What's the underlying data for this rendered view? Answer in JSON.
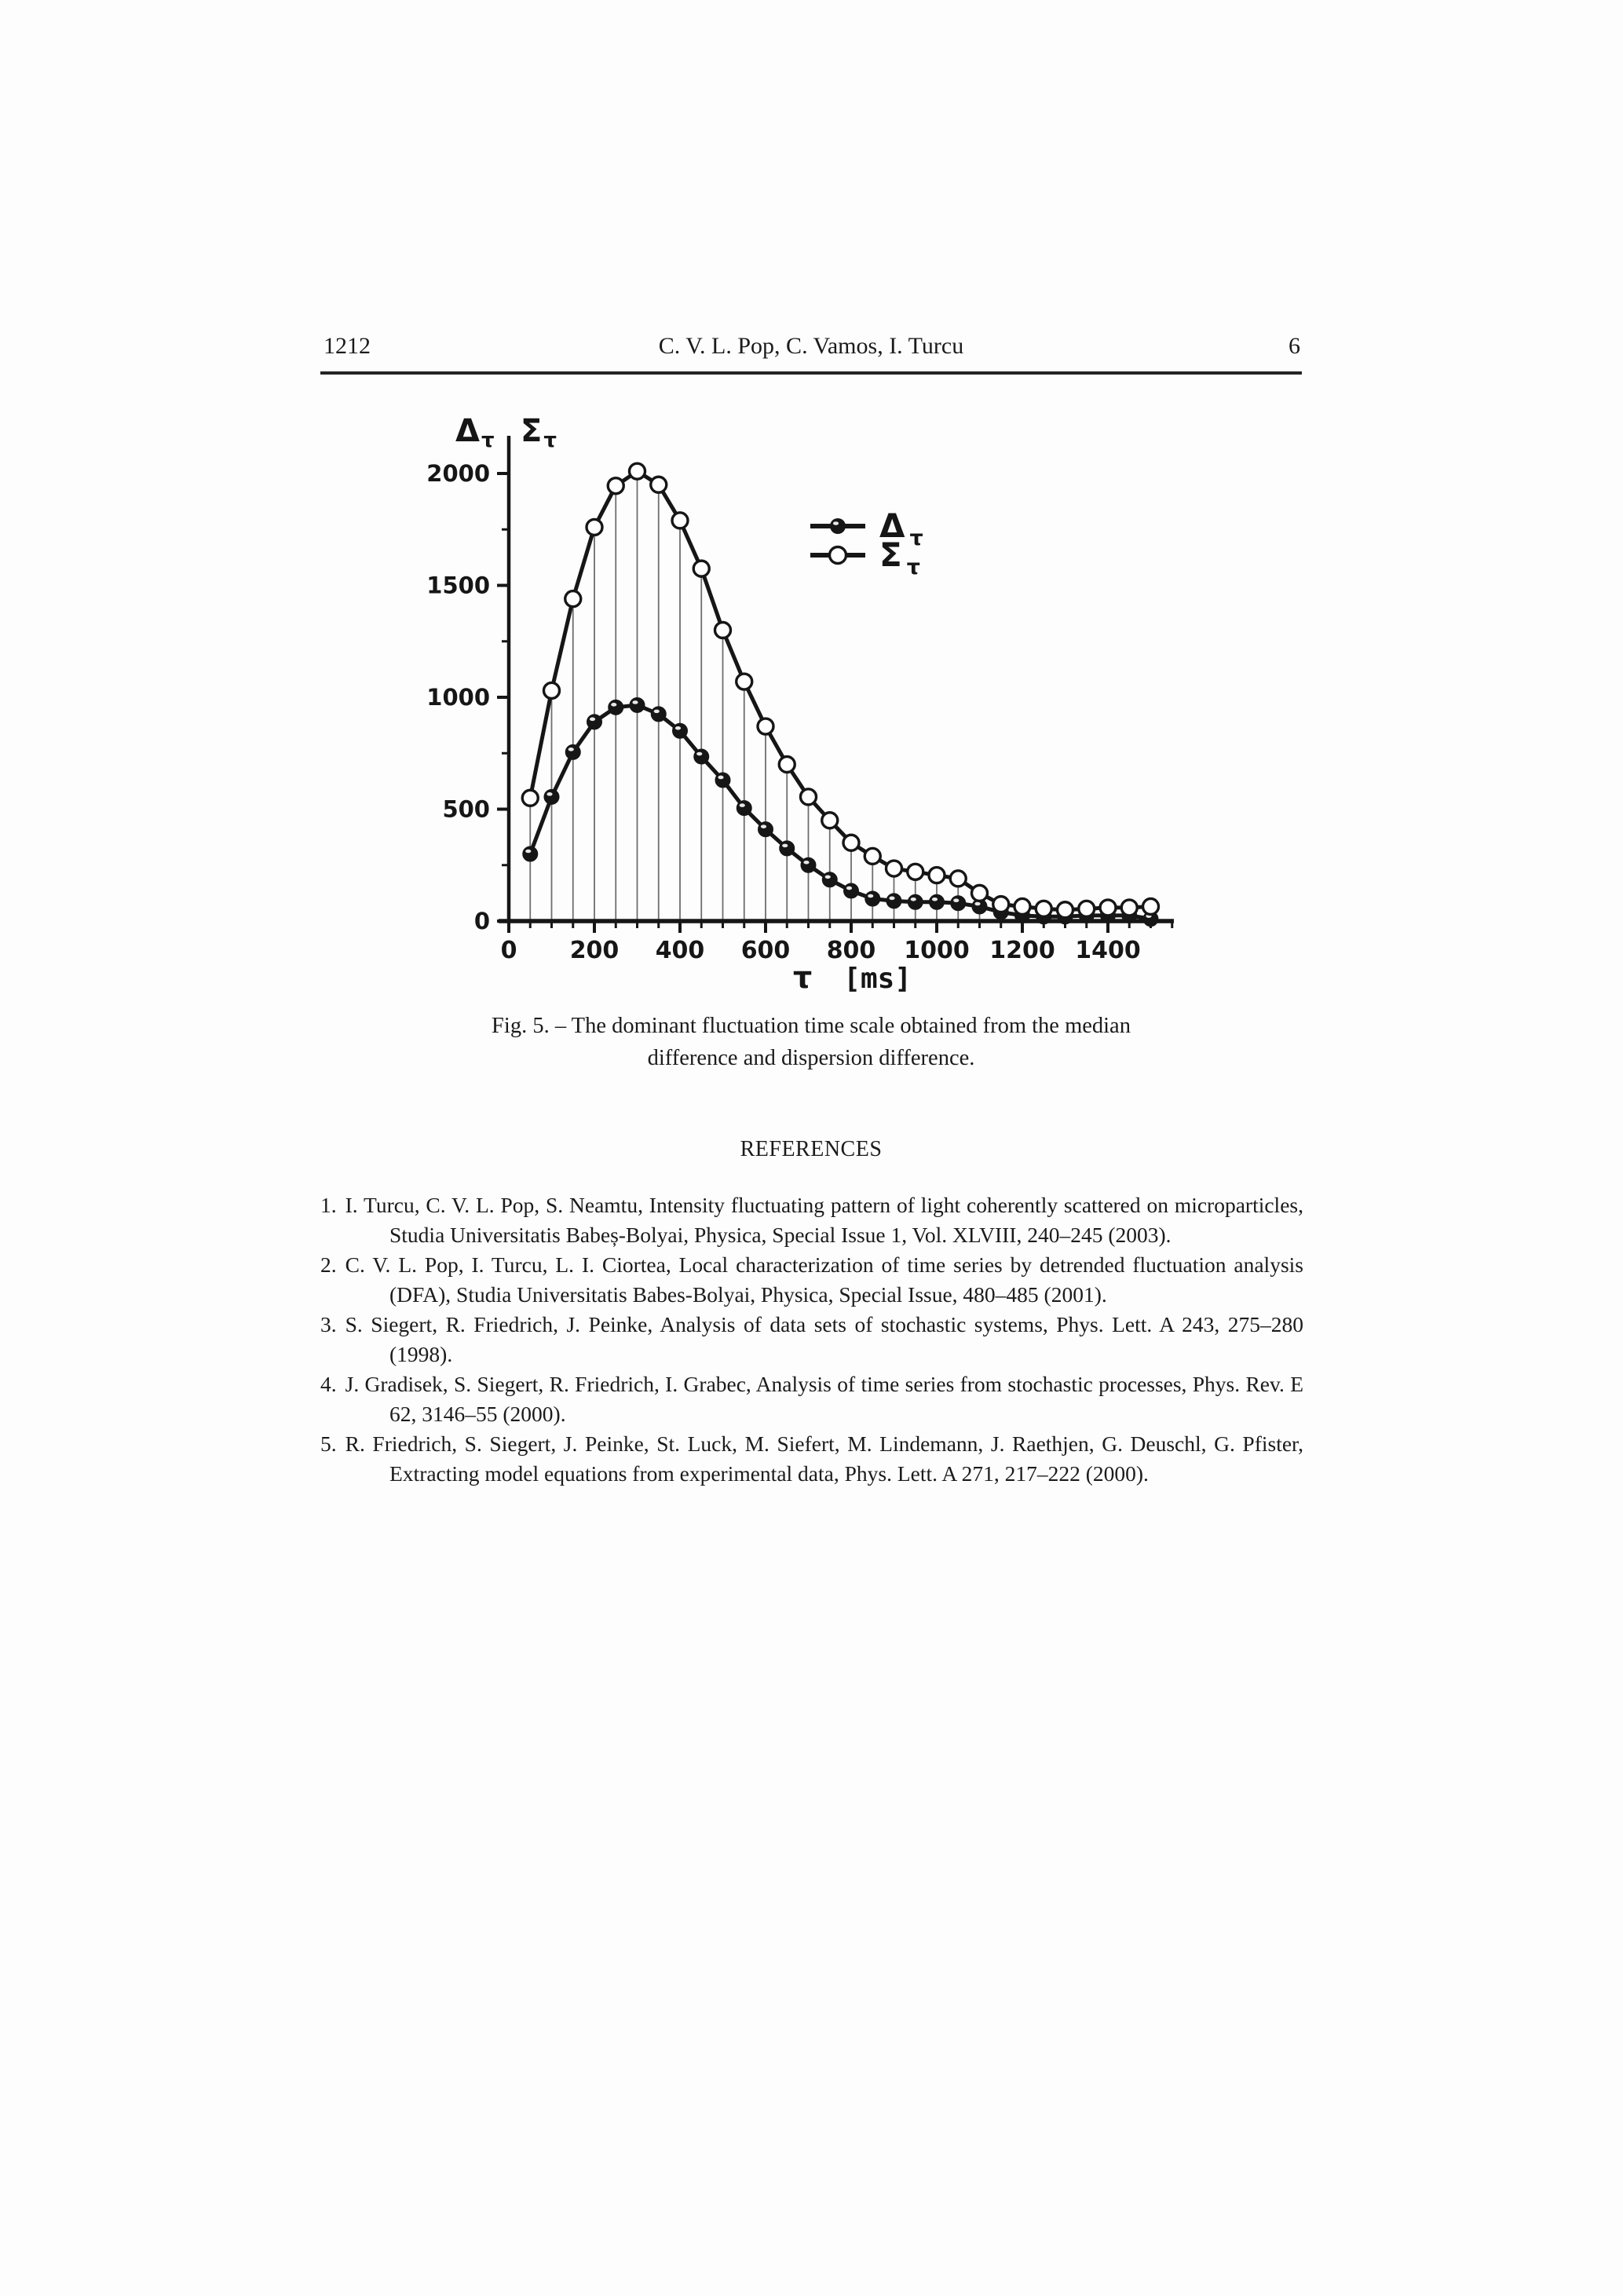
{
  "header": {
    "page_number_left": "1212",
    "running_title": "C. V. L. Pop, C. Vamos, I. Turcu",
    "page_number_right": "6"
  },
  "figure": {
    "caption_line1": "Fig. 5. – The dominant fluctuation time scale obtained from the median",
    "caption_line2": "difference and dispersion difference."
  },
  "chart_data": {
    "type": "line",
    "title": "",
    "xlabel": {
      "symbol": "τ",
      "unit": "[ms]"
    },
    "ylabel_left": {
      "main": "Δ",
      "sub": "τ"
    },
    "ylabel_right": {
      "main": "Σ",
      "sub": "τ"
    },
    "xlim": [
      0,
      1550
    ],
    "ylim": [
      0,
      2150
    ],
    "grid": "drop-lines-every-50ms",
    "legend_position": "upper-right-inside",
    "x_ticks_labeled": [
      0,
      200,
      400,
      600,
      800,
      1000,
      1200,
      1400
    ],
    "x_minor_tick_step": 50,
    "y_ticks_labeled": [
      0,
      500,
      1000,
      1500,
      2000
    ],
    "y_minor_ticks": [
      250,
      750,
      1250,
      1750
    ],
    "x": [
      50,
      100,
      150,
      200,
      250,
      300,
      350,
      400,
      450,
      500,
      550,
      600,
      650,
      700,
      750,
      800,
      850,
      900,
      950,
      1000,
      1050,
      1100,
      1150,
      1200,
      1250,
      1300,
      1350,
      1400,
      1450,
      1500
    ],
    "series": [
      {
        "name": "Δτ",
        "marker": "filled-circle",
        "values": [
          300,
          555,
          755,
          890,
          955,
          965,
          925,
          850,
          735,
          630,
          505,
          410,
          325,
          250,
          185,
          135,
          100,
          90,
          85,
          85,
          80,
          65,
          40,
          25,
          20,
          20,
          25,
          25,
          25,
          10
        ]
      },
      {
        "name": "Στ",
        "marker": "open-circle",
        "values": [
          550,
          1030,
          1440,
          1760,
          1945,
          2010,
          1950,
          1790,
          1575,
          1300,
          1070,
          870,
          700,
          555,
          450,
          350,
          290,
          235,
          220,
          205,
          190,
          125,
          75,
          65,
          55,
          50,
          55,
          60,
          60,
          65
        ]
      }
    ],
    "legend": {
      "entries": [
        {
          "symbol": "filled-circle",
          "label": "Δ",
          "sub": "τ"
        },
        {
          "symbol": "open-circle",
          "label": "Σ",
          "sub": "τ"
        }
      ]
    }
  },
  "references": {
    "heading": "REFERENCES",
    "items": [
      {
        "number": "1.",
        "text": "I. Turcu, C. V. L. Pop, S. Neamtu, Intensity fluctuating pattern of light coherently scattered on microparticles, Studia Universitatis Babeș-Bolyai, Physica, Special Issue 1, Vol. XLVIII, 240–245 (2003)."
      },
      {
        "number": "2.",
        "text": "C. V. L. Pop, I. Turcu, L. I. Ciortea, Local characterization of time series by detrended fluctuation analysis (DFA), Studia Universitatis Babes-Bolyai, Physica, Special Issue, 480–485 (2001)."
      },
      {
        "number": "3.",
        "text": "S. Siegert, R. Friedrich, J. Peinke, Analysis of data sets of stochastic systems, Phys. Lett. A 243, 275–280 (1998)."
      },
      {
        "number": "4.",
        "text": "J. Gradisek, S. Siegert, R. Friedrich, I. Grabec, Analysis of time series from stochastic processes, Phys. Rev. E 62, 3146–55 (2000)."
      },
      {
        "number": "5.",
        "text": "R. Friedrich, S. Siegert, J. Peinke, St. Luck, M. Siefert, M. Lindemann, J. Raethjen, G. Deuschl, G. Pfister, Extracting model equations from experimental data, Phys. Lett. A 271, 217–222 (2000)."
      }
    ]
  }
}
